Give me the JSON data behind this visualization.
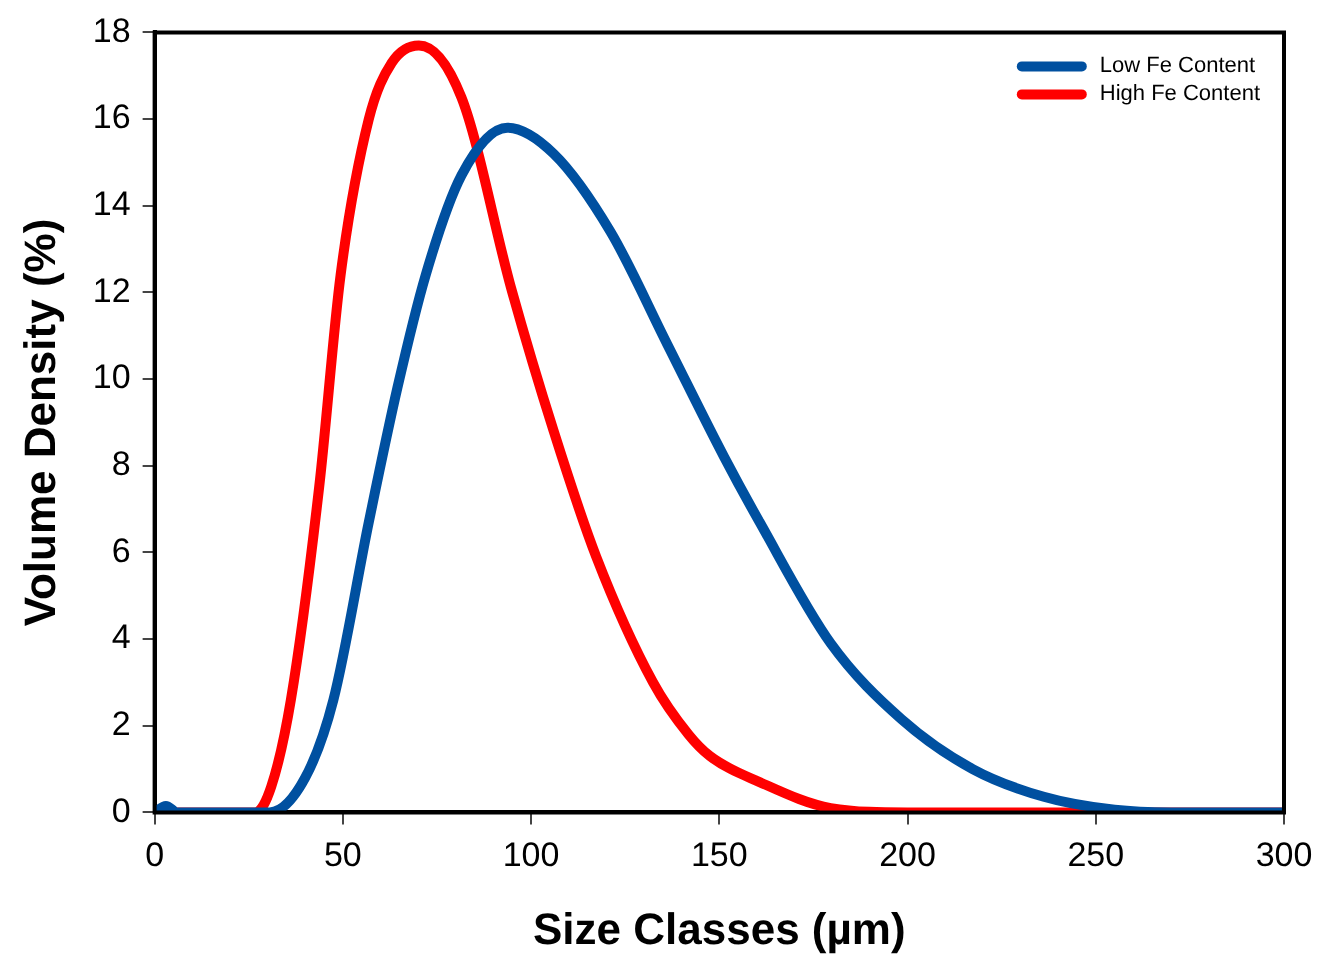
{
  "chart_data": {
    "type": "line",
    "xlabel": "Size Classes (µm)",
    "ylabel": "Volume Density (%)",
    "xlim": [
      0,
      300
    ],
    "xticks": [
      0,
      50,
      100,
      150,
      200,
      250,
      300
    ],
    "ylim": [
      0,
      18
    ],
    "yticks": [
      0,
      2,
      4,
      6,
      8,
      10,
      12,
      14,
      16,
      18
    ],
    "grid": false,
    "legend": "top right",
    "marker": "none",
    "line_style": "solid",
    "series": [
      {
        "name": "Low Fe Content",
        "color": "#0050a0",
        "x": [
          0,
          3,
          6,
          30.5,
          40,
          47.5,
          56.9,
          64.5,
          72,
          81.5,
          93.7,
          106,
          121.1,
          136.2,
          151.3,
          160.7,
          179.6,
          198.4,
          217.3,
          236.2,
          255,
          270,
          300
        ],
        "values": [
          0,
          0.15,
          0,
          0,
          0.8,
          2.6,
          6.7,
          9.8,
          12.4,
          14.7,
          15.8,
          15.2,
          13.4,
          10.8,
          8.2,
          6.7,
          3.9,
          2.15,
          1.0,
          0.36,
          0.06,
          0,
          0
        ]
      },
      {
        "name": "High Fe Content",
        "color": "#ff0000",
        "x": [
          0,
          26.8,
          31,
          36.2,
          43.7,
          49.4,
          56.9,
          63,
          70.2,
          81.5,
          94.7,
          106,
          117.3,
          132.4,
          141.8,
          147.5,
          160.7,
          179.6,
          200,
          300
        ],
        "values": [
          0,
          0,
          0.6,
          2.6,
          7.5,
          12.4,
          16.0,
          17.3,
          17.7,
          16.5,
          12.1,
          8.8,
          5.9,
          3.0,
          1.8,
          1.3,
          0.7,
          0.1,
          0,
          0
        ]
      }
    ]
  }
}
